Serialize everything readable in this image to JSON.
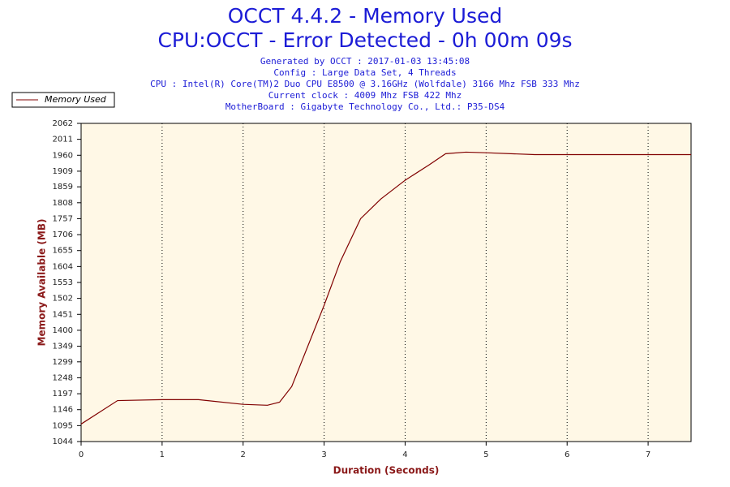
{
  "chart_data": {
    "type": "line",
    "title": "OCCT 4.4.2 - Memory Used",
    "subtitle": "CPU:OCCT - Error Detected - 0h 00m 09s",
    "info": [
      "Generated by OCCT : 2017-01-03 13:45:08",
      "Config : Large Data Set, 4 Threads",
      "CPU : Intel(R) Core(TM)2 Duo CPU E8500 @ 3.16GHz (Wolfdale) 3166 Mhz FSB 333 Mhz",
      "Current clock : 4009 Mhz FSB 422 Mhz",
      "MotherBoard : Gigabyte Technology Co., Ltd.: P35-DS4"
    ],
    "x_label": "Duration (Seconds)",
    "y_label": "Memory Available (MB)",
    "x": [
      0,
      0.45,
      1.0,
      1.45,
      2.0,
      2.3,
      2.45,
      2.6,
      3.0,
      3.2,
      3.45,
      3.7,
      4.0,
      4.3,
      4.5,
      4.75,
      5.0,
      5.6,
      6.0,
      7.53
    ],
    "series": [
      {
        "name": "Memory Used",
        "color": "#800000",
        "values": [
          1100,
          1175,
          1178,
          1178,
          1163,
          1160,
          1170,
          1220,
          1480,
          1620,
          1757,
          1820,
          1880,
          1930,
          1965,
          1970,
          1968,
          1962,
          1962,
          1962
        ]
      }
    ],
    "xlim": [
      0,
      7.53
    ],
    "xticks": [
      0,
      1,
      2,
      3,
      4,
      5,
      6,
      7
    ],
    "ylim": [
      1044,
      2062
    ],
    "yticks": [
      1044,
      1095,
      1146,
      1197,
      1248,
      1299,
      1349,
      1400,
      1451,
      1502,
      1553,
      1604,
      1655,
      1706,
      1757,
      1808,
      1859,
      1909,
      1960,
      2011,
      2062
    ],
    "grid": "x",
    "background": "#fff8e6"
  }
}
